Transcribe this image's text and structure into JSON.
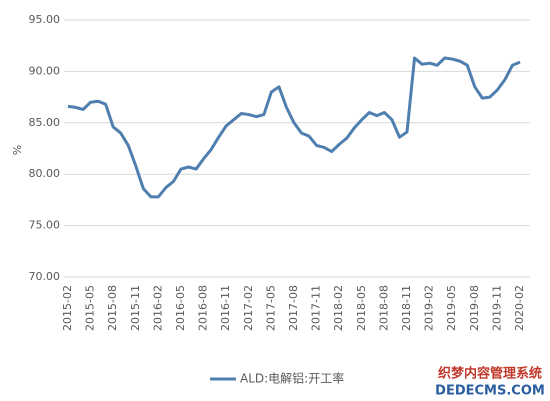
{
  "chart_data": {
    "type": "line",
    "y_label": "%",
    "categories": [
      "2015-02",
      null,
      null,
      "2015-05",
      null,
      null,
      "2015-08",
      null,
      null,
      "2015-11",
      null,
      null,
      "2016-02",
      null,
      null,
      "2016-05",
      null,
      null,
      "2016-08",
      null,
      null,
      "2016-11",
      null,
      null,
      "2017-02",
      null,
      null,
      "2017-05",
      null,
      null,
      "2017-08",
      null,
      null,
      "2017-11",
      null,
      null,
      "2018-02",
      null,
      null,
      "2018-05",
      null,
      null,
      "2018-08",
      null,
      null,
      "2018-11",
      null,
      null,
      "2019-02",
      null,
      null,
      "2019-05",
      null,
      null,
      "2019-08",
      null,
      null,
      "2019-11",
      null,
      null,
      "2020-02"
    ],
    "series": [
      {
        "name": "ALD:电解铝:开工率",
        "color": "#4f7fae",
        "values": [
          86.6,
          86.5,
          86.3,
          87.0,
          87.1,
          86.8,
          84.6,
          84.0,
          82.8,
          80.8,
          78.6,
          77.8,
          77.8,
          78.7,
          79.3,
          80.5,
          80.7,
          80.5,
          81.5,
          82.4,
          83.6,
          84.7,
          85.3,
          85.9,
          85.8,
          85.6,
          85.8,
          88.0,
          88.5,
          86.5,
          85.0,
          84.0,
          83.7,
          82.8,
          82.6,
          82.2,
          82.9,
          83.5,
          84.5,
          85.3,
          86.0,
          85.7,
          86.0,
          85.3,
          83.6,
          84.1,
          91.3,
          90.7,
          90.8,
          90.6,
          91.3,
          91.2,
          91.0,
          90.6,
          88.5,
          87.4,
          87.5,
          88.2,
          89.2,
          90.6,
          90.9
        ]
      }
    ],
    "ylim": [
      70,
      95
    ],
    "yticks": [
      {
        "value": 70,
        "label": "70.00"
      },
      {
        "value": 75,
        "label": "75.00"
      },
      {
        "value": 80,
        "label": "80.00"
      },
      {
        "value": 85,
        "label": "85.00"
      },
      {
        "value": 90,
        "label": "90.00"
      },
      {
        "value": 95,
        "label": "95.00"
      }
    ],
    "grid": true,
    "legend": "bottom",
    "watermark": [
      "织梦内容管理系统",
      "DEDECMS.COM"
    ]
  }
}
